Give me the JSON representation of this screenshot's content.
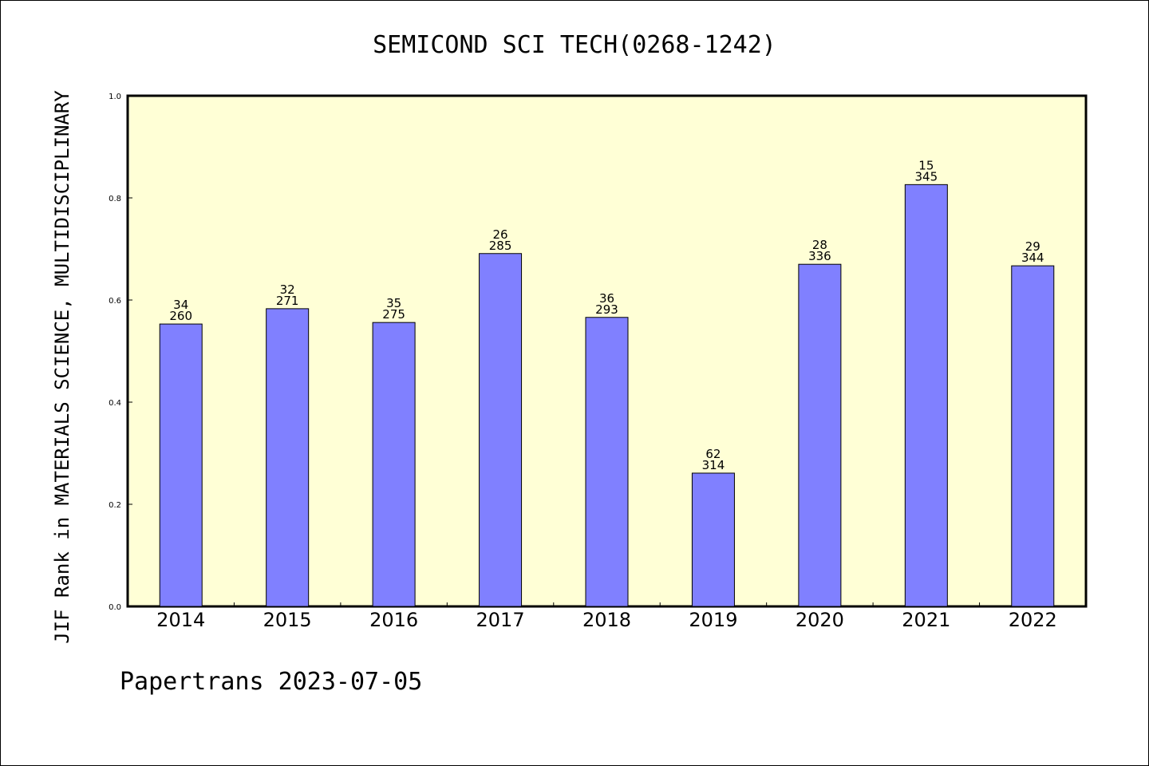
{
  "chart_data": {
    "type": "bar",
    "title": "SEMICOND SCI TECH(0268-1242)",
    "xlabel": "",
    "ylabel": "JIF Rank in MATERIALS SCIENCE, MULTIDISCIPLINARY",
    "ylim": [
      0,
      1.0
    ],
    "yticks": [
      "0.0",
      "0.2",
      "0.4",
      "0.6",
      "0.8",
      "1.0"
    ],
    "grid": false,
    "categories": [
      "2014",
      "2015",
      "2016",
      "2017",
      "2018",
      "2019",
      "2020",
      "2021",
      "2022"
    ],
    "values": [
      0.553,
      0.583,
      0.556,
      0.691,
      0.566,
      0.261,
      0.67,
      0.826,
      0.667
    ],
    "rank": [
      "34",
      "32",
      "35",
      "26",
      "36",
      "62",
      "28",
      "15",
      "29"
    ],
    "total": [
      "260",
      "271",
      "275",
      "285",
      "293",
      "314",
      "336",
      "345",
      "344"
    ],
    "colors": {
      "plot_bg": "#ffffd6",
      "bar_fill": "#8080ff",
      "bar_stroke": "#000000"
    }
  },
  "footer": "Papertrans 2023-07-05"
}
